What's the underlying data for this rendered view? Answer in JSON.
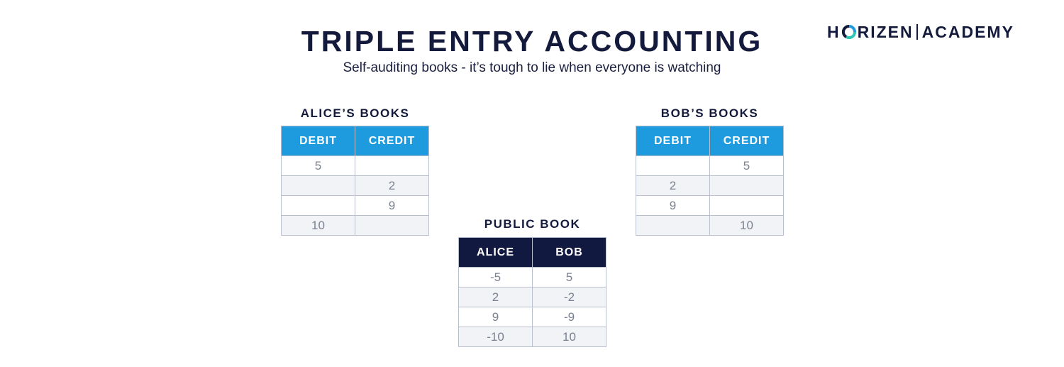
{
  "header": {
    "title": "TRIPLE ENTRY ACCOUNTING",
    "subtitle": "Self-auditing books - it’s tough to lie when everyone is watching"
  },
  "logo": {
    "left_text": "H",
    "right_text": "RIZEN",
    "academy_text": "ACADEMY",
    "ring_colors": [
      "#1e9bdf",
      "#2ec4b6",
      "#141a3c"
    ]
  },
  "colors": {
    "private_header": "#1e9bdf",
    "public_header": "#121940",
    "text_dark": "#141a3c",
    "cell_text": "#7a8190"
  },
  "alice_books": {
    "label": "ALICE’S BOOKS",
    "columns": [
      "DEBIT",
      "CREDIT"
    ],
    "rows": [
      [
        "5",
        ""
      ],
      [
        "",
        "2"
      ],
      [
        "",
        "9"
      ],
      [
        "10",
        ""
      ]
    ]
  },
  "bob_books": {
    "label": "BOB’S BOOKS",
    "columns": [
      "DEBIT",
      "CREDIT"
    ],
    "rows": [
      [
        "",
        "5"
      ],
      [
        "2",
        ""
      ],
      [
        "9",
        ""
      ],
      [
        "",
        "10"
      ]
    ]
  },
  "public_book": {
    "label": "PUBLIC BOOK",
    "columns": [
      "ALICE",
      "BOB"
    ],
    "rows": [
      [
        "-5",
        "5"
      ],
      [
        "2",
        "-2"
      ],
      [
        "9",
        "-9"
      ],
      [
        "-10",
        "10"
      ]
    ]
  }
}
